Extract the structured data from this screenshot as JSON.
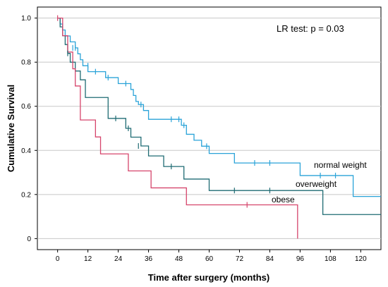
{
  "chart_data": {
    "type": "line",
    "subtype": "kaplan-meier-step",
    "title": "",
    "xlabel": "Time after surgery (months)",
    "ylabel": "Cumulative Survival",
    "xlim": [
      -8,
      128
    ],
    "ylim": [
      -0.05,
      1.05
    ],
    "x_ticks": [
      0,
      12,
      24,
      36,
      48,
      60,
      72,
      84,
      96,
      108,
      120
    ],
    "y_ticks": [
      0,
      0.2,
      0.4,
      0.6,
      0.8,
      1.0
    ],
    "y_tick_labels": [
      "0",
      "0.2",
      "0.4",
      "0.6",
      "0.8",
      "1.0"
    ],
    "grid": "horizontal",
    "annotation": "LR test: p = 0.03",
    "series": [
      {
        "name": "normal weight",
        "color": "#2aa3d8",
        "steps": [
          [
            0,
            1.0
          ],
          [
            1,
            0.973
          ],
          [
            2,
            0.946
          ],
          [
            3,
            0.919
          ],
          [
            5,
            0.892
          ],
          [
            7,
            0.865
          ],
          [
            8,
            0.838
          ],
          [
            9,
            0.811
          ],
          [
            10,
            0.784
          ],
          [
            12,
            0.757
          ],
          [
            19,
            0.73
          ],
          [
            24,
            0.703
          ],
          [
            29,
            0.676
          ],
          [
            30,
            0.649
          ],
          [
            31,
            0.622
          ],
          [
            32,
            0.608
          ],
          [
            34,
            0.581
          ],
          [
            36,
            0.541
          ],
          [
            49,
            0.514
          ],
          [
            51,
            0.473
          ],
          [
            54,
            0.446
          ],
          [
            57,
            0.419
          ],
          [
            60,
            0.386
          ],
          [
            70,
            0.343
          ],
          [
            96,
            0.286
          ],
          [
            117,
            0.191
          ]
        ],
        "end_x": 128,
        "censored": [
          [
            6,
            0.865
          ],
          [
            7,
            0.865
          ],
          [
            12,
            0.784
          ],
          [
            15,
            0.757
          ],
          [
            20,
            0.73
          ],
          [
            27,
            0.703
          ],
          [
            33,
            0.608
          ],
          [
            45,
            0.541
          ],
          [
            48,
            0.541
          ],
          [
            50,
            0.514
          ],
          [
            59,
            0.419
          ],
          [
            78,
            0.343
          ],
          [
            84,
            0.343
          ],
          [
            104,
            0.286
          ],
          [
            110,
            0.286
          ]
        ],
        "label": "normal weight"
      },
      {
        "name": "overweight",
        "color": "#1f6b73",
        "steps": [
          [
            0,
            1.0
          ],
          [
            1,
            0.96
          ],
          [
            2,
            0.92
          ],
          [
            3,
            0.88
          ],
          [
            4,
            0.84
          ],
          [
            5,
            0.8
          ],
          [
            7,
            0.76
          ],
          [
            9,
            0.72
          ],
          [
            11,
            0.64
          ],
          [
            20,
            0.545
          ],
          [
            27,
            0.5
          ],
          [
            29,
            0.46
          ],
          [
            33,
            0.42
          ],
          [
            36,
            0.375
          ],
          [
            42,
            0.327
          ],
          [
            50,
            0.27
          ],
          [
            60,
            0.218
          ],
          [
            105,
            0.109
          ]
        ],
        "end_x": 128,
        "censored": [
          [
            4,
            0.84
          ],
          [
            23,
            0.545
          ],
          [
            28,
            0.5
          ],
          [
            32,
            0.42
          ],
          [
            45,
            0.327
          ],
          [
            70,
            0.218
          ],
          [
            84,
            0.218
          ]
        ],
        "label": "overweight"
      },
      {
        "name": "obese",
        "color": "#d6456c",
        "steps": [
          [
            0,
            1.0
          ],
          [
            2,
            0.92
          ],
          [
            4,
            0.846
          ],
          [
            6,
            0.77
          ],
          [
            7,
            0.692
          ],
          [
            9,
            0.538
          ],
          [
            15,
            0.461
          ],
          [
            17,
            0.384
          ],
          [
            28,
            0.307
          ],
          [
            37,
            0.23
          ],
          [
            51,
            0.153
          ],
          [
            95,
            0.0
          ]
        ],
        "end_x": 95,
        "censored": [
          [
            0,
            1.0
          ],
          [
            75,
            0.153
          ]
        ],
        "label": "obese"
      }
    ]
  }
}
